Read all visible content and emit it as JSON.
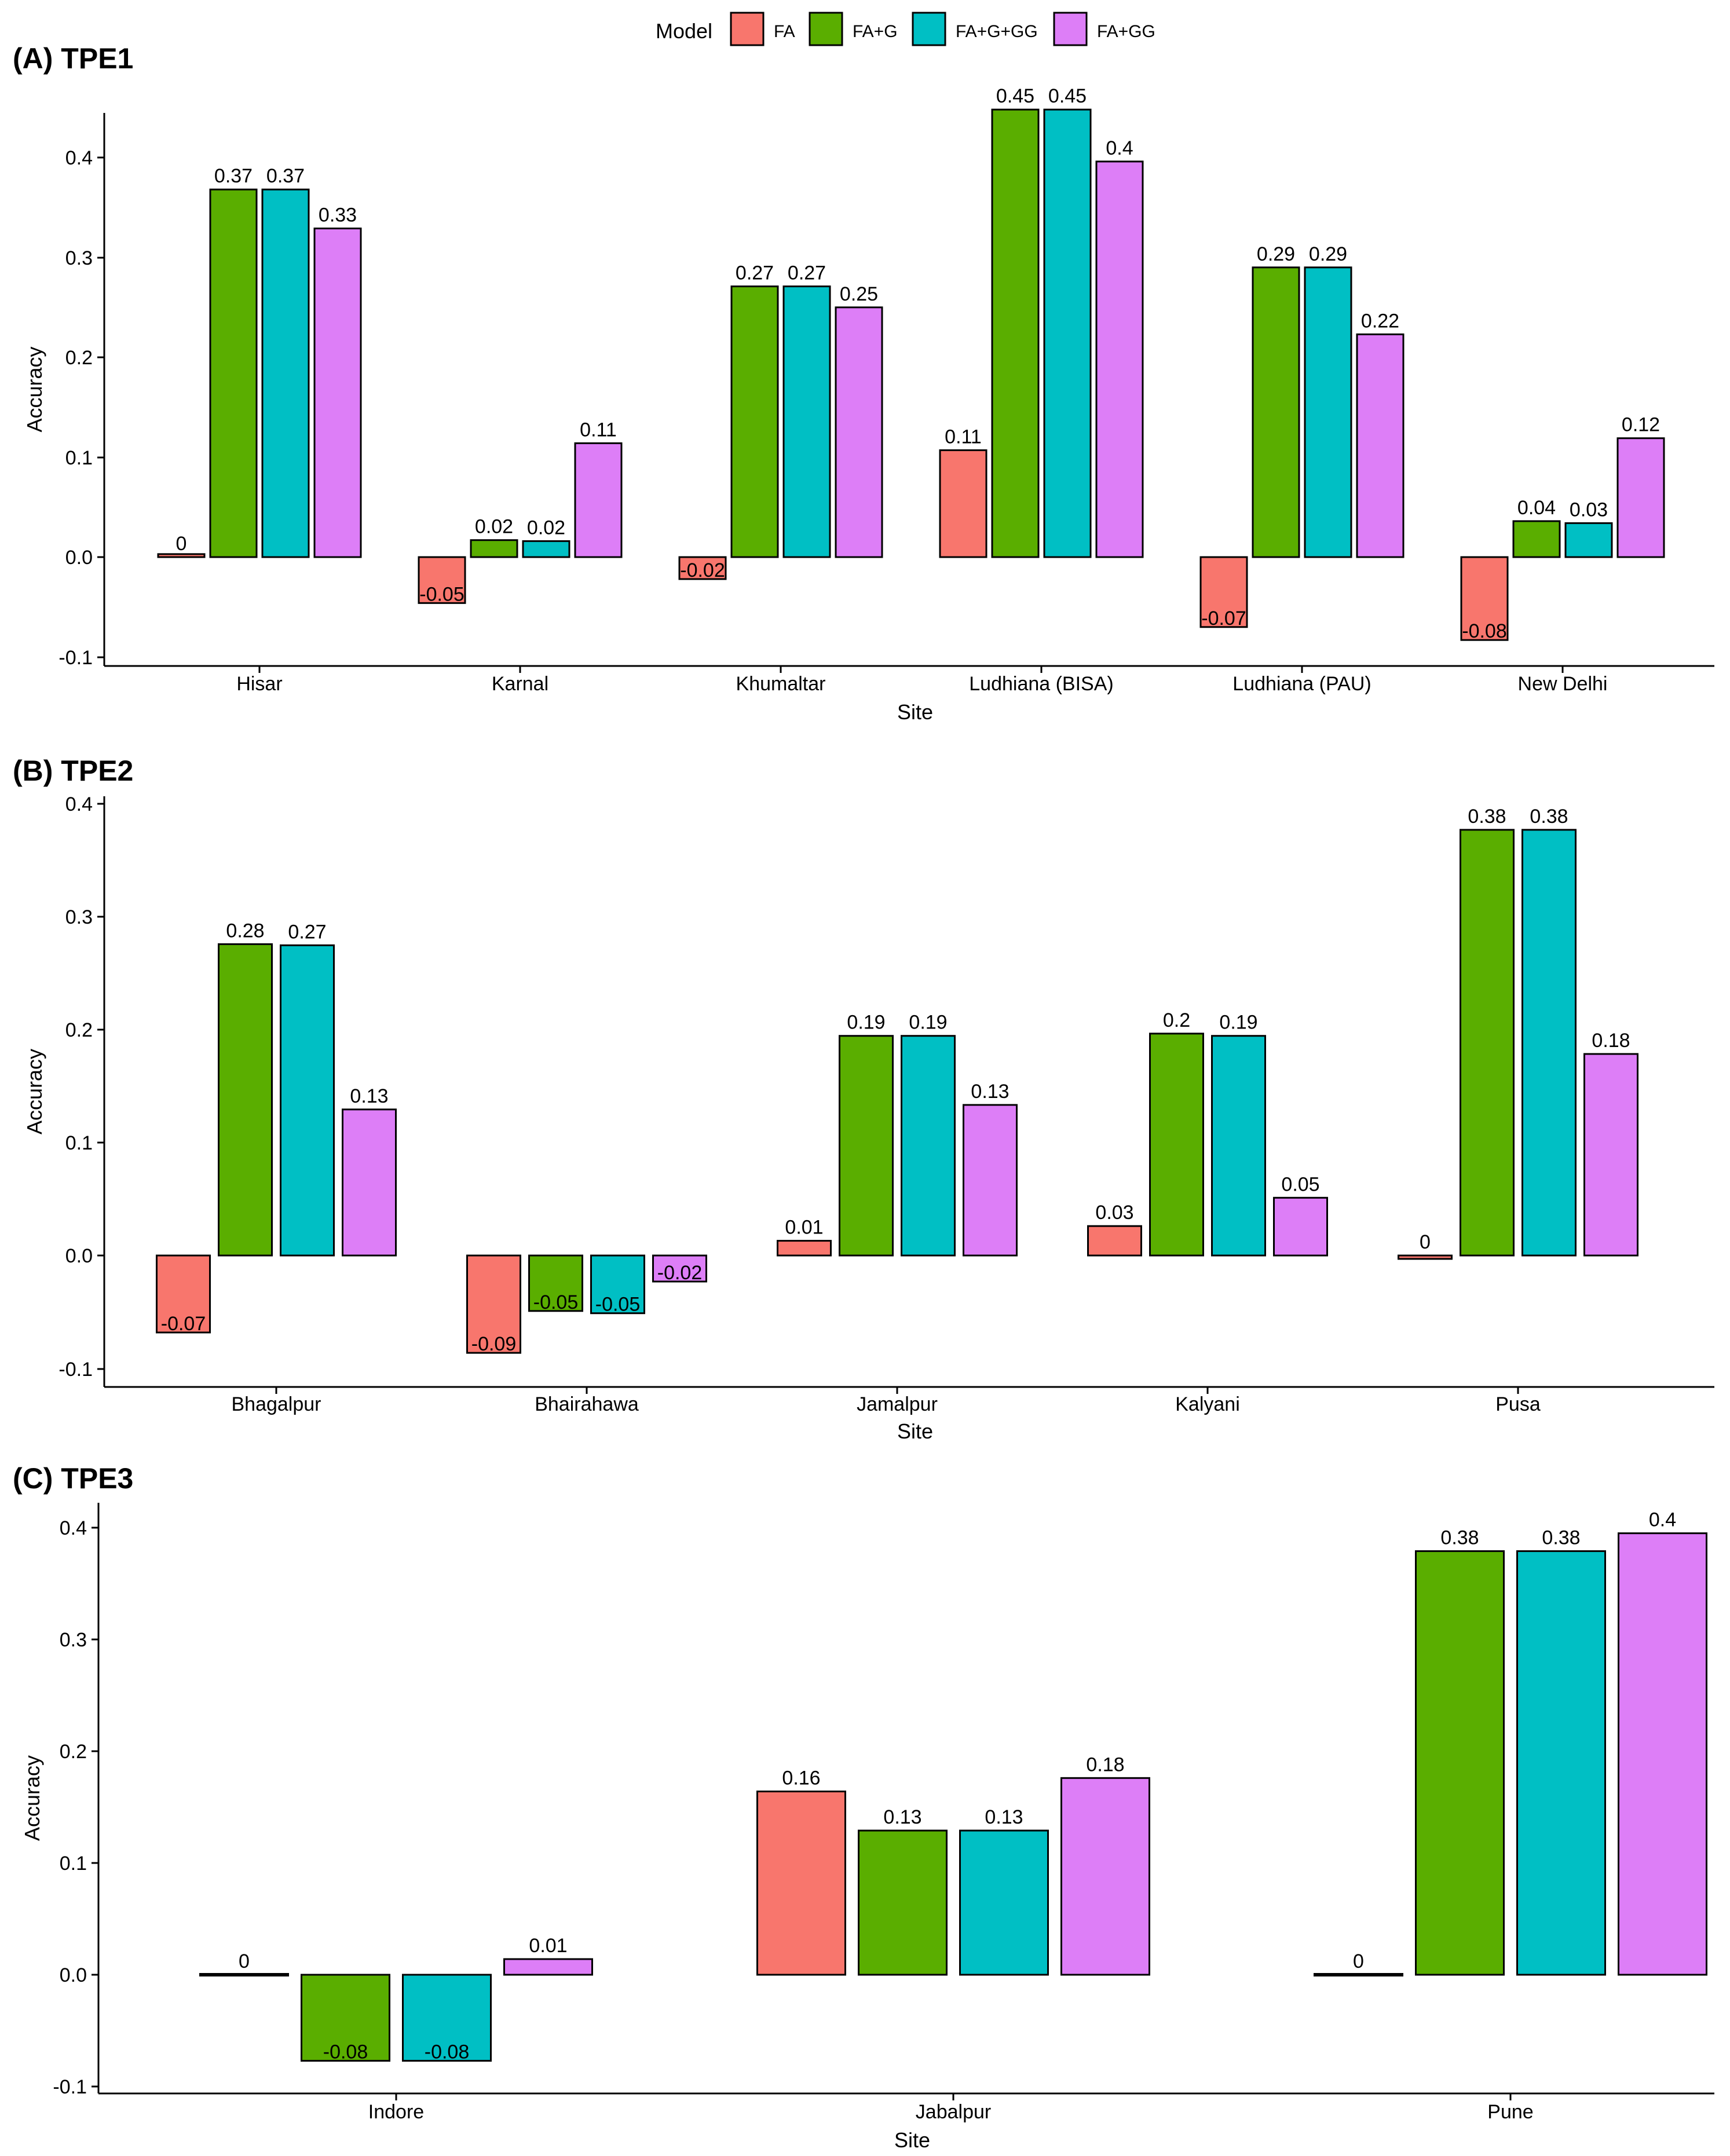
{
  "legend": {
    "title": "Model",
    "items": [
      {
        "label": "FA",
        "color": "#F8766D"
      },
      {
        "label": "FA+G",
        "color": "#5AAE00"
      },
      {
        "label": "FA+G+GG",
        "color": "#00BFC4"
      },
      {
        "label": "FA+GG",
        "color": "#DD7EF7"
      }
    ]
  },
  "chart_data": [
    {
      "type": "bar",
      "title": "(A) TPE1",
      "xlabel": "Site",
      "ylabel": "Accuracy",
      "ylim": [
        -0.11,
        0.46
      ],
      "yticks": [
        "-0.1",
        "0.0",
        "0.1",
        "0.2",
        "0.3",
        "0.4"
      ],
      "categories": [
        "Hisar",
        "Karnal",
        "Khumaltar",
        "Ludhiana (BISA)",
        "Ludhiana (PAU)",
        "New Delhi"
      ],
      "series": [
        {
          "name": "FA",
          "values": [
            0.003,
            -0.046,
            -0.022,
            0.107,
            -0.07,
            -0.083
          ],
          "labels": [
            "0",
            "-0.05",
            "-0.02",
            "0.11",
            "-0.07",
            "-0.08"
          ]
        },
        {
          "name": "FA+G",
          "values": [
            0.368,
            0.017,
            0.271,
            0.448,
            0.29,
            0.036
          ],
          "labels": [
            "0.37",
            "0.02",
            "0.27",
            "0.45",
            "0.29",
            "0.04"
          ]
        },
        {
          "name": "FA+G+GG",
          "values": [
            0.368,
            0.016,
            0.271,
            0.448,
            0.29,
            0.034
          ],
          "labels": [
            "0.37",
            "0.02",
            "0.27",
            "0.45",
            "0.29",
            "0.03"
          ]
        },
        {
          "name": "FA+GG",
          "values": [
            0.329,
            0.114,
            0.25,
            0.396,
            0.223,
            0.119
          ],
          "labels": [
            "0.33",
            "0.11",
            "0.25",
            "0.4",
            "0.22",
            "0.12"
          ]
        }
      ]
    },
    {
      "type": "bar",
      "title": "(B) TPE2",
      "xlabel": "Site",
      "ylabel": "Accuracy",
      "ylim": [
        -0.1,
        0.4
      ],
      "yticks": [
        "-0.1",
        "0.0",
        "0.1",
        "0.2",
        "0.3",
        "0.4"
      ],
      "categories": [
        "Bhagalpur",
        "Bhairahawa",
        "Jamalpur",
        "Kalyani",
        "Pusa"
      ],
      "series": [
        {
          "name": "FA",
          "values": [
            -0.068,
            -0.086,
            0.013,
            0.026,
            -0.003
          ],
          "labels": [
            "-0.07",
            "-0.09",
            "0.01",
            "0.03",
            "0"
          ]
        },
        {
          "name": "FA+G",
          "values": [
            0.275,
            -0.049,
            0.194,
            0.196,
            0.376
          ],
          "labels": [
            "0.28",
            "-0.05",
            "0.19",
            "0.2",
            "0.38"
          ]
        },
        {
          "name": "FA+G+GG",
          "values": [
            0.274,
            -0.051,
            0.194,
            0.194,
            0.376
          ],
          "labels": [
            "0.27",
            "-0.05",
            "0.19",
            "0.19",
            "0.38"
          ]
        },
        {
          "name": "FA+GG",
          "values": [
            0.129,
            -0.023,
            0.133,
            0.051,
            0.178
          ],
          "labels": [
            "0.13",
            "-0.02",
            "0.13",
            "0.05",
            "0.18"
          ]
        }
      ]
    },
    {
      "type": "bar",
      "title": "(C) TPE3",
      "xlabel": "Site",
      "ylabel": "Accuracy",
      "ylim": [
        -0.1,
        0.42
      ],
      "yticks": [
        "-0.1",
        "0.0",
        "0.1",
        "0.2",
        "0.3",
        "0.4"
      ],
      "categories": [
        "Indore",
        "Jabalpur",
        "Pune"
      ],
      "series": [
        {
          "name": "FA",
          "values": [
            0.0,
            0.164,
            0.0
          ],
          "labels": [
            "0",
            "0.16",
            "0"
          ]
        },
        {
          "name": "FA+G",
          "values": [
            -0.077,
            0.129,
            0.379
          ],
          "labels": [
            "-0.08",
            "0.13",
            "0.38"
          ]
        },
        {
          "name": "FA+G+GG",
          "values": [
            -0.077,
            0.129,
            0.379
          ],
          "labels": [
            "-0.08",
            "0.13",
            "0.38"
          ]
        },
        {
          "name": "FA+GG",
          "values": [
            0.014,
            0.176,
            0.395
          ],
          "labels": [
            "0.01",
            "0.18",
            "0.4"
          ]
        }
      ]
    }
  ]
}
